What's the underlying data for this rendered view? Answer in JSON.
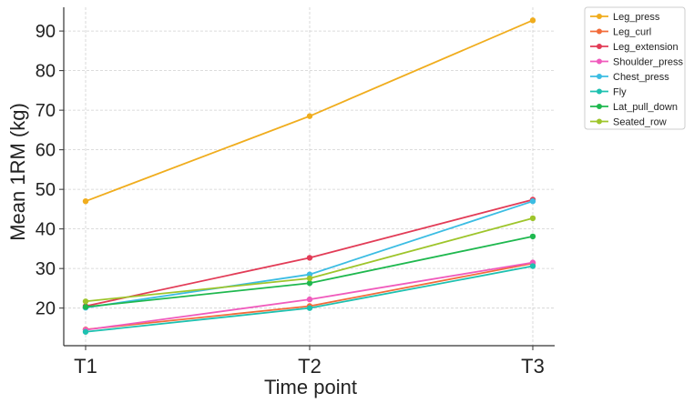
{
  "chart_data": {
    "type": "line",
    "xlabel": "Time point",
    "ylabel": "Mean 1RM (kg)",
    "categories": [
      "T1",
      "T2",
      "T3"
    ],
    "ylim": [
      10.5,
      96
    ],
    "yticks": [
      20,
      30,
      40,
      50,
      60,
      70,
      80,
      90
    ],
    "grid": true,
    "legend_position": "top-right outside",
    "series": [
      {
        "name": "Leg_press",
        "color": "#f0ad1e",
        "values": [
          47.0,
          68.5,
          92.7
        ]
      },
      {
        "name": "Leg_curl",
        "color": "#f26b3a",
        "values": [
          14.6,
          20.5,
          31.3
        ]
      },
      {
        "name": "Leg_extension",
        "color": "#e23c57",
        "values": [
          20.5,
          32.7,
          47.4
        ]
      },
      {
        "name": "Shoulder_press",
        "color": "#f05bbd",
        "values": [
          14.5,
          22.2,
          31.5
        ]
      },
      {
        "name": "Chest_press",
        "color": "#3cbde3",
        "values": [
          20.1,
          28.5,
          47.0
        ]
      },
      {
        "name": "Fly",
        "color": "#1ec1b0",
        "values": [
          14.0,
          20.0,
          30.6
        ]
      },
      {
        "name": "Lat_pull_down",
        "color": "#1fb84f",
        "values": [
          20.3,
          26.3,
          38.1
        ]
      },
      {
        "name": "Seated_row",
        "color": "#9ec52b",
        "values": [
          21.7,
          27.5,
          42.7
        ]
      }
    ]
  }
}
